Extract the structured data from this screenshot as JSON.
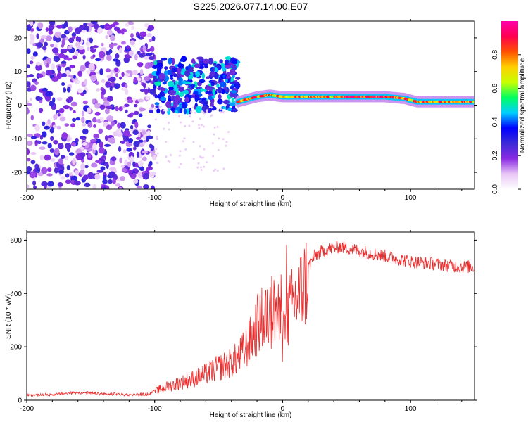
{
  "title": "S225.2026.077.14.00.E07",
  "chart_data": [
    {
      "type": "heatmap",
      "xlabel": "Height of straight line (km)",
      "ylabel": "Frequency (Hz)",
      "xlim": [
        -200,
        150
      ],
      "ylim": [
        -25,
        25
      ],
      "xticks": [
        -200,
        -100,
        0,
        100
      ],
      "yticks": [
        20,
        10,
        0,
        -10,
        -20
      ],
      "xtick_labels": [
        "-200",
        "-100",
        "0",
        "100"
      ],
      "ytick_labels": [
        "20",
        "10",
        "0",
        "-10",
        "-20"
      ],
      "colorbar": {
        "label": "Normalized spectral amplitude",
        "range": [
          0,
          1
        ],
        "ticks": [
          0.0,
          0.2,
          0.4,
          0.6,
          0.8
        ],
        "tick_labels": [
          "0.0",
          "0.2",
          "0.4",
          "0.6",
          "0.8"
        ],
        "colors": [
          "#ffffff",
          "#e8c6f6",
          "#8a2be2",
          "#3b2bd8",
          "#0000ff",
          "#00d0ff",
          "#00ff60",
          "#c8ff00",
          "#ffd000",
          "#ff5000",
          "#ff0050",
          "#ff00aa"
        ]
      },
      "regions": [
        {
          "name": "noise",
          "x": [
            -200,
            -100
          ],
          "f": [
            -25,
            25
          ],
          "amplitude": [
            0.05,
            0.3
          ]
        },
        {
          "name": "transition",
          "x": [
            -100,
            -35
          ],
          "f": [
            -2,
            14
          ],
          "amplitude": [
            0.2,
            0.5
          ]
        },
        {
          "name": "signal",
          "x": [
            -35,
            150
          ],
          "f": [
            0,
            4
          ],
          "amplitude": [
            0.5,
            1.0
          ]
        }
      ],
      "ridge": {
        "x": [
          -35,
          -20,
          -10,
          0,
          20,
          50,
          80,
          95,
          105,
          115,
          130,
          150
        ],
        "f": [
          1,
          2.5,
          3,
          2.5,
          2.5,
          2.5,
          2.5,
          2,
          1,
          1,
          1,
          1
        ]
      }
    },
    {
      "type": "line",
      "xlabel": "Height of straight line (km)",
      "ylabel": "SNR (10 * v/v)",
      "xlim": [
        -200,
        150
      ],
      "ylim": [
        0,
        630
      ],
      "xticks": [
        -200,
        -100,
        0,
        100
      ],
      "yticks": [
        0,
        200,
        400,
        600
      ],
      "xtick_labels": [
        "-200",
        "-100",
        "0",
        "100"
      ],
      "ytick_labels": [
        "0",
        "200",
        "400",
        "600"
      ],
      "color": "#ee2a2a",
      "series": [
        {
          "name": "SNR",
          "x": [
            -200,
            -180,
            -160,
            -140,
            -120,
            -105,
            -100,
            -90,
            -80,
            -70,
            -60,
            -50,
            -40,
            -35,
            -30,
            -25,
            -20,
            -15,
            -10,
            -5,
            0,
            5,
            10,
            15,
            20,
            25,
            30,
            35,
            40,
            45,
            50,
            60,
            70,
            80,
            90,
            100,
            110,
            120,
            130,
            140,
            150
          ],
          "y": [
            18,
            20,
            28,
            22,
            20,
            20,
            35,
            55,
            70,
            85,
            105,
            130,
            150,
            170,
            200,
            240,
            300,
            330,
            340,
            370,
            250,
            360,
            400,
            440,
            500,
            540,
            555,
            565,
            570,
            575,
            570,
            560,
            550,
            540,
            530,
            520,
            515,
            510,
            505,
            500,
            500
          ]
        }
      ]
    }
  ]
}
